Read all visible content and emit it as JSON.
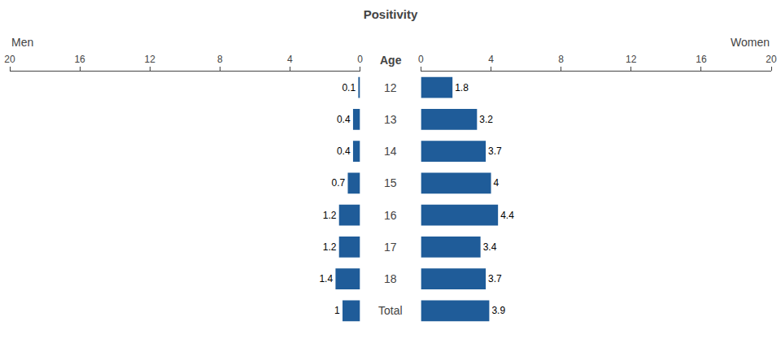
{
  "chart_data": {
    "type": "bar",
    "orientation": "horizontal",
    "title": "Positivity",
    "ylabel": "Age",
    "categories": [
      "12",
      "13",
      "14",
      "15",
      "16",
      "17",
      "18",
      "Total"
    ],
    "series": [
      {
        "name": "Men",
        "color": "#1F5C99",
        "values": [
          0.1,
          0.4,
          0.4,
          0.7,
          1.2,
          1.2,
          1.4,
          1.0
        ]
      },
      {
        "name": "Women",
        "color": "#1F5C99",
        "axis": "x2",
        "values": [
          1.8,
          3.2,
          3.7,
          4.0,
          4.4,
          3.4,
          3.7,
          3.9
        ]
      }
    ],
    "xlim": [
      20,
      0
    ],
    "xticks": [
      20,
      16,
      12,
      8,
      4,
      0
    ],
    "x2lim": [
      0,
      20
    ],
    "x2ticks": [
      0,
      4,
      8,
      12,
      16,
      20
    ],
    "data_labels": true,
    "grid": false,
    "tick_labels": "x"
  }
}
